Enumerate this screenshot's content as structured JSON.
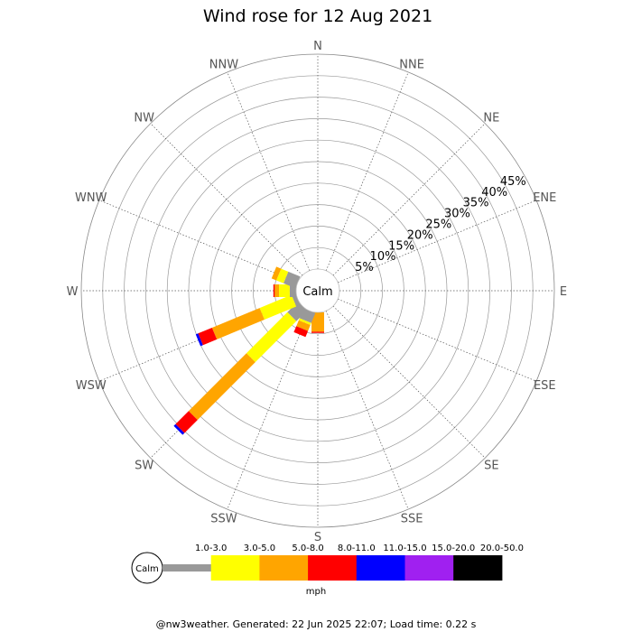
{
  "chart_data": {
    "type": "wind-rose",
    "title": "Wind rose for 12 Aug 2021",
    "directions": [
      "N",
      "NNE",
      "NE",
      "ENE",
      "E",
      "ESE",
      "SE",
      "SSE",
      "S",
      "SSW",
      "SW",
      "WSW",
      "W",
      "WNW",
      "NW",
      "NNW"
    ],
    "radial_ticks": [
      5,
      10,
      15,
      20,
      25,
      30,
      35,
      40,
      45
    ],
    "radial_tick_labels": [
      "5%",
      "10%",
      "15%",
      "20%",
      "25%",
      "30%",
      "35%",
      "40%",
      "45%"
    ],
    "rmax": 50,
    "calm_label": "Calm",
    "speed_bins": [
      {
        "label": "1.0-3.0",
        "color": "#999999"
      },
      {
        "label": "3.0-5.0",
        "color": "#ffff00"
      },
      {
        "label": "5.0-8.0",
        "color": "#ffa500"
      },
      {
        "label": "8.0-11.0",
        "color": "#ff0000"
      },
      {
        "label": "11.0-15.0",
        "color": "#0000ff"
      },
      {
        "label": "15.0-20.0",
        "color": "#a020f0"
      },
      {
        "label": "20.0-50.0",
        "color": "#000000"
      }
    ],
    "unit": "mph",
    "petals": {
      "S": [
        0.0,
        0.0,
        4.5,
        0.3,
        0.0,
        0.0,
        0.0
      ],
      "SSW": [
        2.5,
        0.5,
        1.5,
        1.5,
        0.0,
        0.0,
        0.0
      ],
      "SW": [
        3.5,
        13.5,
        19.0,
        4.3,
        0.6,
        0.0,
        0.0
      ],
      "WSW": [
        1.0,
        8.0,
        12.0,
        3.5,
        0.6,
        0.0,
        0.0
      ],
      "W": [
        1.5,
        2.5,
        1.0,
        0.3,
        0.0,
        0.0,
        0.0
      ],
      "WNW": [
        3.0,
        1.8,
        1.2,
        0.0,
        0.0,
        0.0,
        0.0
      ]
    }
  },
  "footer": "@nw3weather. Generated: 22 Jun 2025 22:07; Load time: 0.22 s"
}
